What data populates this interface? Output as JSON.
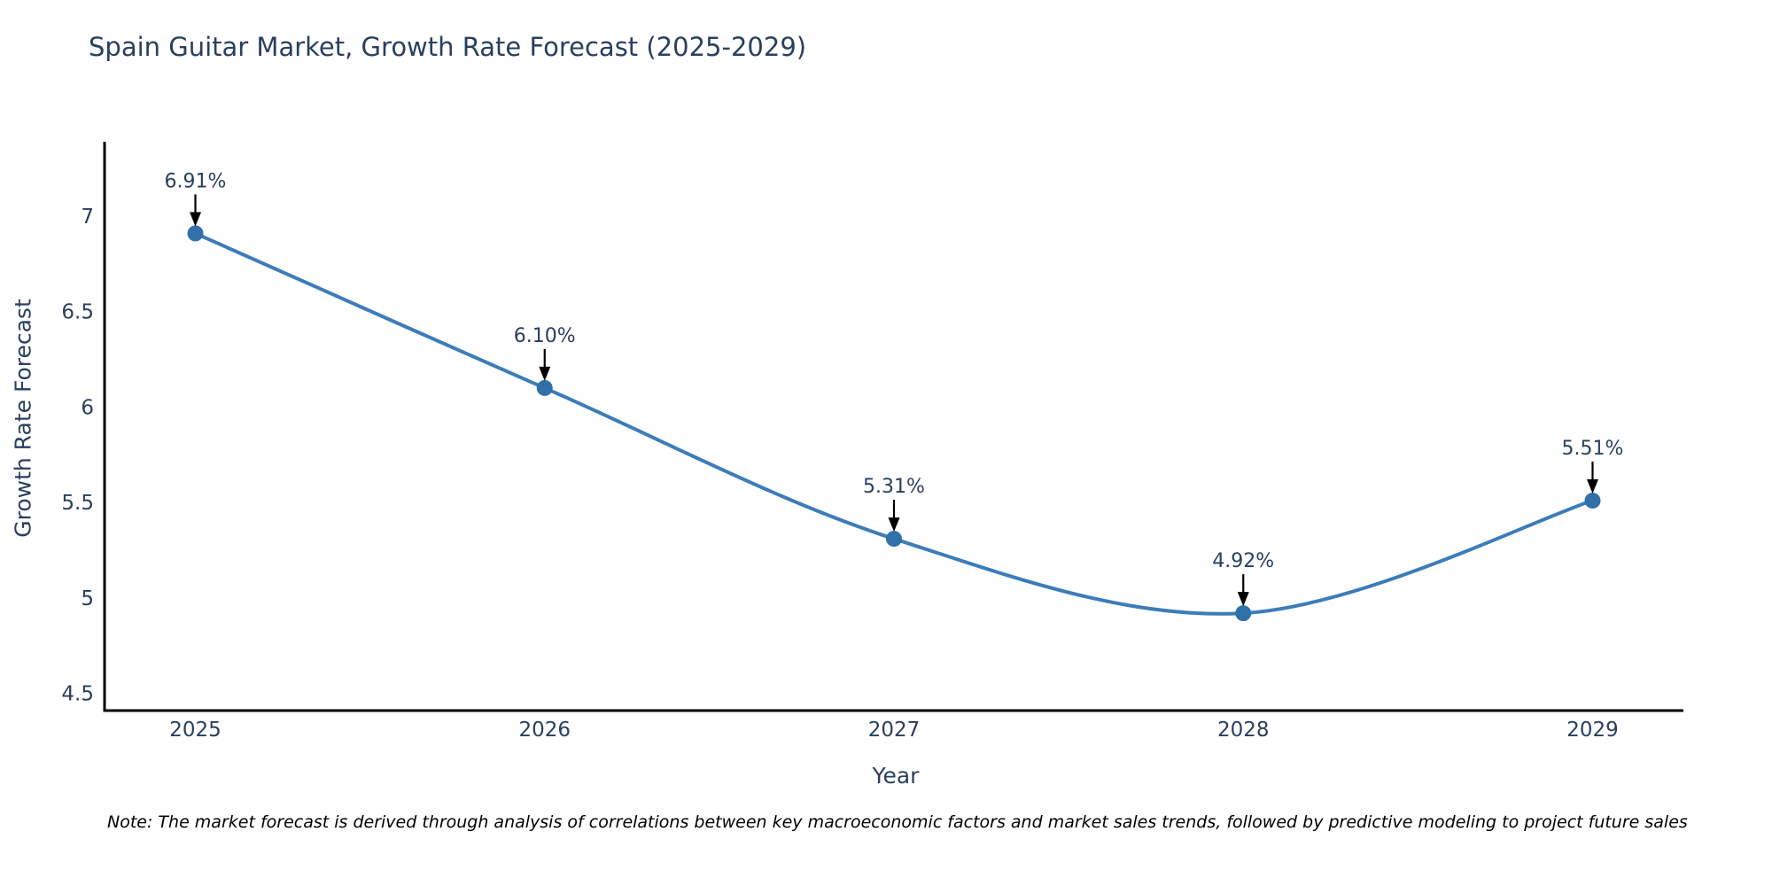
{
  "title": "Spain Guitar Market, Growth Rate Forecast (2025-2029)",
  "note": "Note: The market forecast is derived through analysis of correlations between key macroeconomic factors and market sales trends, followed by predictive modeling to project future sales",
  "colors": {
    "text": "#2a3f5f",
    "line": "#3d7cb8",
    "marker": "#316fa8",
    "axis": "#000000",
    "arrow": "#000000",
    "note_text": "#000000",
    "background": "#ffffff"
  },
  "chart_data": {
    "type": "line",
    "title": "Spain Guitar Market, Growth Rate Forecast (2025-2029)",
    "xlabel": "Year",
    "ylabel": "Growth Rate Forecast",
    "x": [
      2025,
      2026,
      2027,
      2028,
      2029
    ],
    "values": [
      6.91,
      6.1,
      5.31,
      4.92,
      5.51
    ],
    "point_labels": [
      "6.91%",
      "6.10%",
      "5.31%",
      "4.92%",
      "5.51%"
    ],
    "xtick_labels": [
      "2025",
      "2026",
      "2027",
      "2028",
      "2029"
    ],
    "yticks": [
      4.5,
      5,
      5.5,
      6,
      6.5,
      7
    ],
    "ytick_labels": [
      "4.5",
      "5",
      "5.5",
      "6",
      "6.5",
      "7"
    ],
    "xlim": [
      2024.74,
      2029.26
    ],
    "ylim": [
      4.41,
      7.39
    ],
    "grid": false,
    "legend": false,
    "line_shape": "spline",
    "marker_size": 9,
    "annotations_arrow": true
  }
}
